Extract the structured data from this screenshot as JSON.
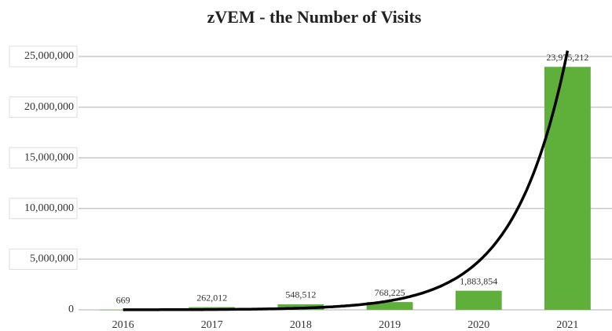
{
  "chart_data": {
    "type": "bar",
    "title": "zVEM - the Number of Visits",
    "categories": [
      "2016",
      "2017",
      "2018",
      "2019",
      "2020",
      "2021"
    ],
    "values": [
      669,
      262012,
      548512,
      768225,
      1883854,
      23975212
    ],
    "value_labels": [
      "669",
      "262,012",
      "548,512",
      "768,225",
      "1,883,854",
      "23,975,212"
    ],
    "color": "#5fb03a",
    "ylim": [
      0,
      25000000
    ],
    "yticks": [
      0,
      {
        "value": 5000000,
        "label": "5,000,000"
      },
      {
        "value": 10000000,
        "label": "10,000,000"
      },
      {
        "value": 15000000,
        "label": "15,000,000"
      },
      {
        "value": 20000000,
        "label": "20,000,000"
      },
      {
        "value": 25000000,
        "label": "25,000,000"
      }
    ],
    "grid": true,
    "trendline": "exponential"
  }
}
